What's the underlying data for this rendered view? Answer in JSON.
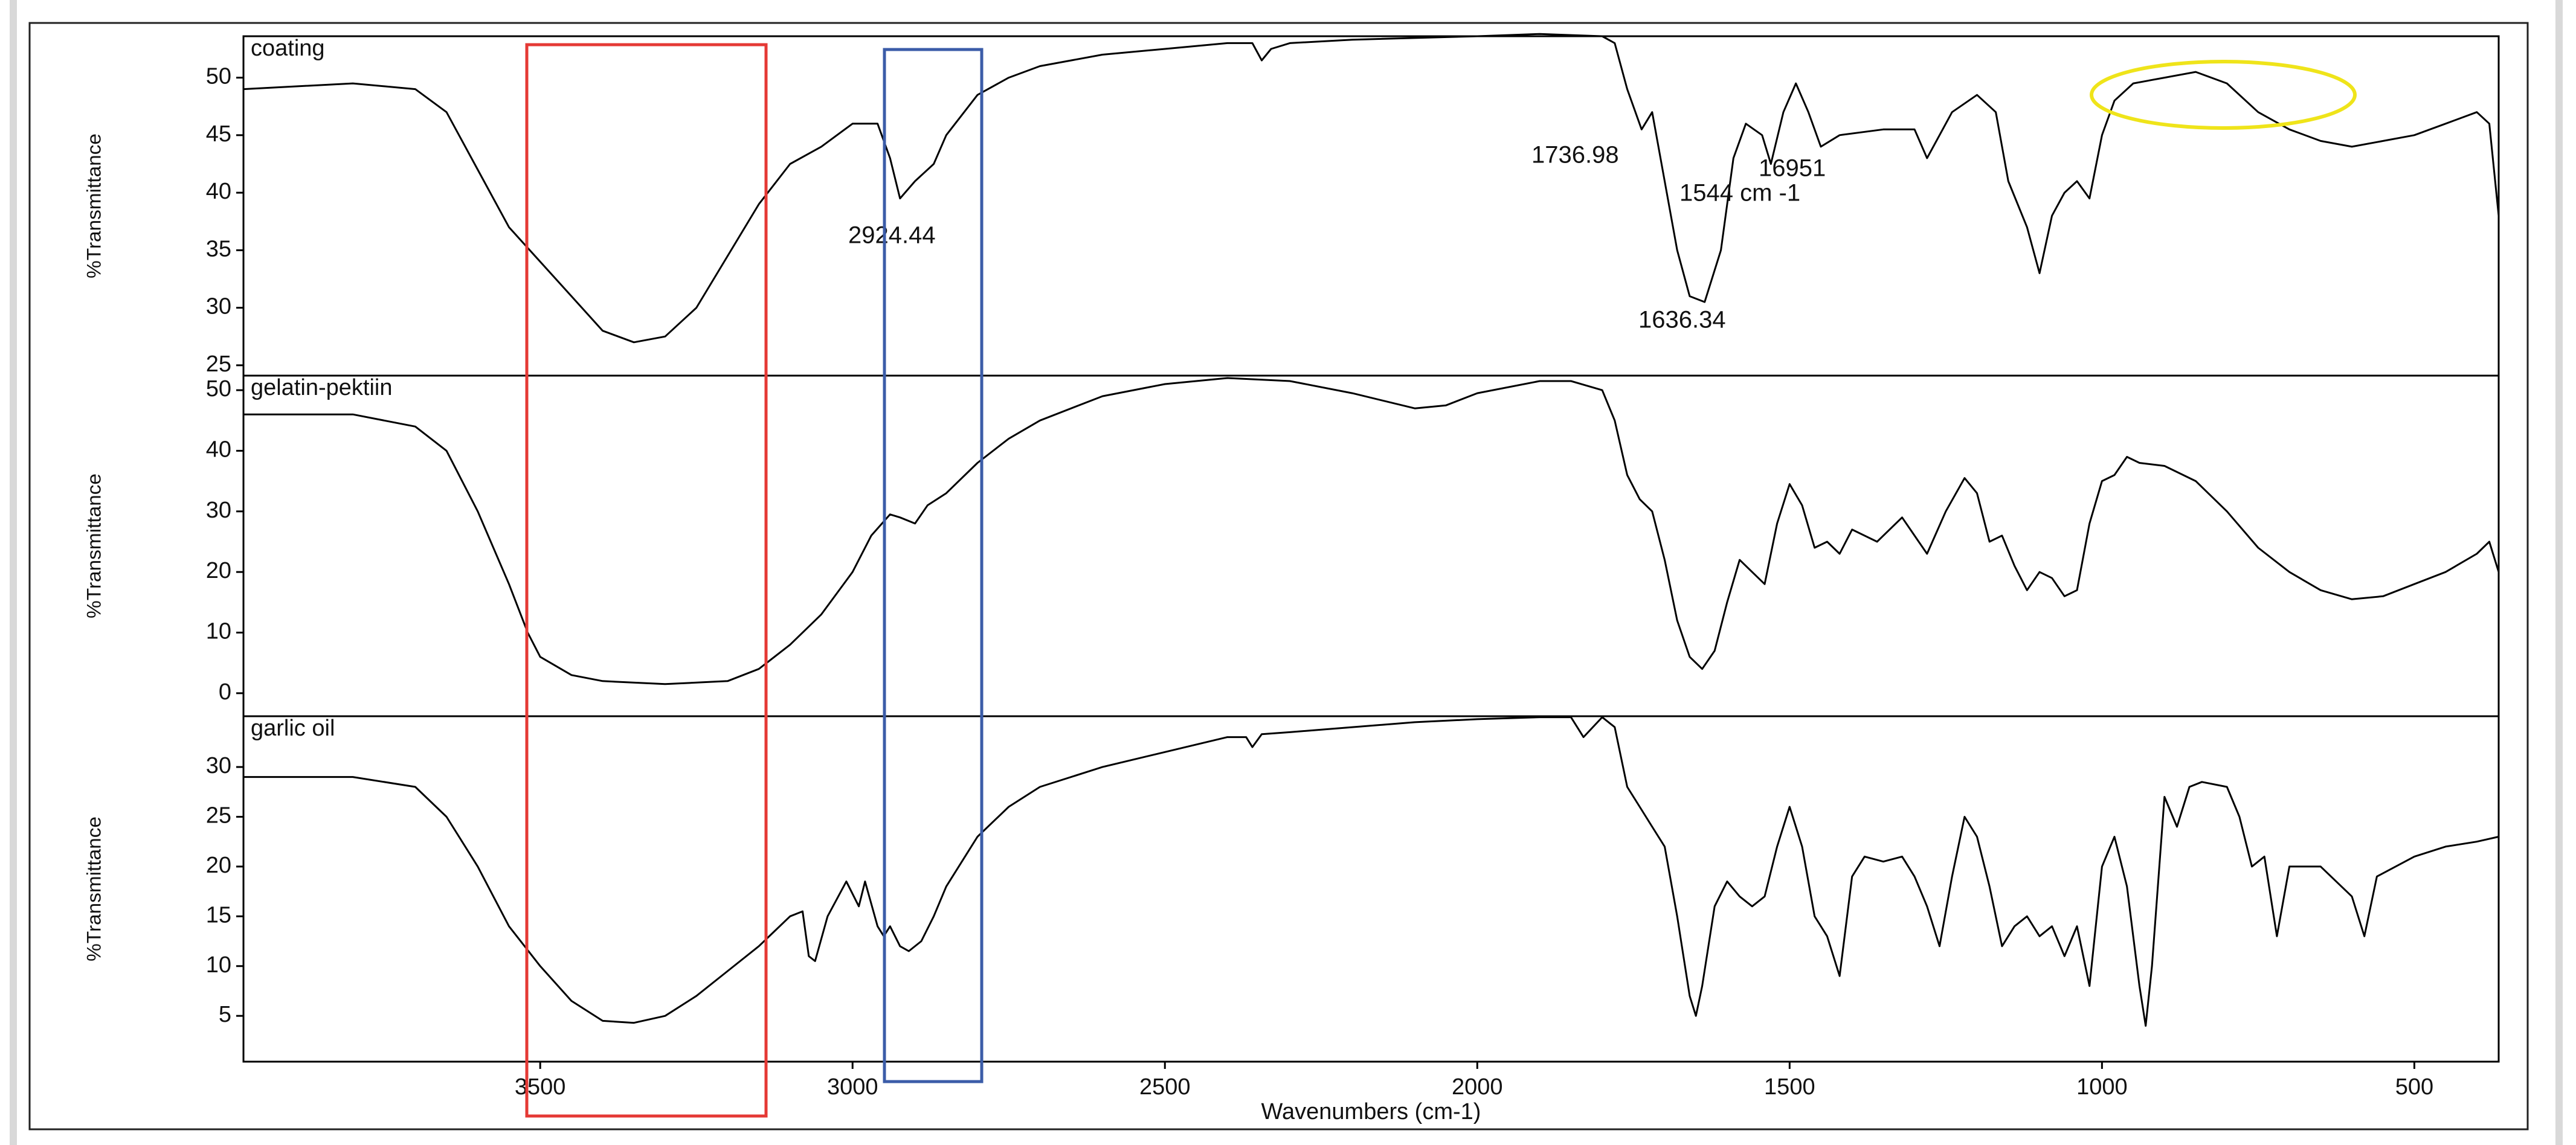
{
  "chart_data": [
    {
      "type": "line",
      "title": "coating",
      "ylabel": "%Transmittance",
      "color": "#000000",
      "xlim": [
        3975,
        365
      ],
      "ylim": [
        24.1,
        53.6
      ],
      "yticks": [
        25,
        30,
        35,
        40,
        45,
        50
      ],
      "annotations": [
        "1736.98",
        "16951",
        "1544 cm -1",
        "2924.44",
        "1636.34"
      ],
      "x": [
        3975,
        3800,
        3700,
        3650,
        3600,
        3550,
        3500,
        3450,
        3400,
        3350,
        3300,
        3250,
        3200,
        3150,
        3100,
        3050,
        3000,
        2960,
        2940,
        2924,
        2900,
        2870,
        2850,
        2800,
        2750,
        2700,
        2600,
        2500,
        2400,
        2360,
        2345,
        2330,
        2300,
        2200,
        2000,
        1900,
        1800,
        1780,
        1760,
        1737,
        1720,
        1700,
        1680,
        1660,
        1636,
        1610,
        1590,
        1570,
        1544,
        1530,
        1510,
        1490,
        1470,
        1450,
        1420,
        1350,
        1300,
        1280,
        1240,
        1200,
        1170,
        1150,
        1120,
        1100,
        1080,
        1060,
        1040,
        1020,
        1000,
        980,
        950,
        900,
        850,
        800,
        750,
        700,
        650,
        600,
        550,
        500,
        450,
        400,
        380,
        365
      ],
      "values": [
        49,
        49.5,
        49,
        47,
        42,
        37,
        34,
        31,
        28,
        27,
        27.5,
        30,
        34.5,
        39,
        42.5,
        44,
        46,
        46,
        43,
        39.5,
        41,
        42.5,
        45,
        48.5,
        50,
        51,
        52,
        52.5,
        53,
        53,
        51.5,
        52.5,
        53,
        53.3,
        53.6,
        53.8,
        53.6,
        53,
        49,
        45.5,
        47,
        41,
        35,
        31,
        30.5,
        35,
        43,
        46,
        45,
        42.5,
        47,
        49.5,
        47,
        44,
        45,
        45.5,
        45.5,
        43,
        47,
        48.5,
        47,
        41,
        37,
        33,
        38,
        40,
        41,
        39.5,
        45,
        48,
        49.5,
        50,
        50.5,
        49.5,
        47,
        45.5,
        44.5,
        44,
        44.5,
        45,
        46,
        47,
        46,
        38
      ]
    },
    {
      "type": "line",
      "title": "gelatin-pektiin",
      "ylabel": "%Transmittance",
      "color": "#000000",
      "xlim": [
        3975,
        365
      ],
      "ylim": [
        -3.8,
        52.4
      ],
      "yticks": [
        0,
        10,
        20,
        30,
        40,
        50
      ],
      "x": [
        3975,
        3800,
        3700,
        3650,
        3600,
        3550,
        3520,
        3500,
        3450,
        3400,
        3300,
        3200,
        3150,
        3100,
        3050,
        3000,
        2970,
        2940,
        2924,
        2900,
        2880,
        2850,
        2800,
        2750,
        2700,
        2600,
        2500,
        2400,
        2300,
        2200,
        2100,
        2050,
        2000,
        1900,
        1850,
        1800,
        1780,
        1760,
        1740,
        1720,
        1700,
        1680,
        1660,
        1640,
        1620,
        1600,
        1580,
        1560,
        1540,
        1520,
        1500,
        1480,
        1460,
        1440,
        1420,
        1400,
        1360,
        1320,
        1300,
        1280,
        1250,
        1220,
        1200,
        1180,
        1160,
        1140,
        1120,
        1100,
        1080,
        1060,
        1040,
        1020,
        1000,
        980,
        960,
        940,
        900,
        850,
        800,
        750,
        700,
        650,
        600,
        550,
        500,
        450,
        400,
        380,
        365
      ],
      "values": [
        46,
        46,
        44,
        40,
        30,
        18,
        10,
        6,
        3,
        2,
        1.5,
        2,
        4,
        8,
        13,
        20,
        26,
        29.5,
        29,
        28,
        31,
        33,
        38,
        42,
        45,
        49,
        51,
        52,
        51.5,
        49.5,
        47,
        47.5,
        49.5,
        51.5,
        51.5,
        50,
        45,
        36,
        32,
        30,
        22,
        12,
        6,
        4,
        7,
        15,
        22,
        20,
        18,
        28,
        34.5,
        31,
        24,
        25,
        23,
        27,
        25,
        29,
        26,
        23,
        30,
        35.5,
        33,
        25,
        26,
        21,
        17,
        20,
        19,
        16,
        17,
        28,
        35,
        36,
        39,
        38,
        37.5,
        35,
        30,
        24,
        20,
        17,
        15.5,
        16,
        18,
        20,
        23,
        25,
        20
      ]
    },
    {
      "type": "line",
      "title": "garlic oil",
      "ylabel": "%Transmittance",
      "xlabel": "Wavenumbers (cm-1)",
      "color": "#000000",
      "xlim": [
        3975,
        365
      ],
      "ylim": [
        0.4,
        35.1
      ],
      "yticks": [
        5,
        10,
        15,
        20,
        25,
        30
      ],
      "xticks": [
        3500,
        3000,
        2500,
        2000,
        1500,
        1000,
        500
      ],
      "x": [
        3975,
        3800,
        3700,
        3650,
        3600,
        3550,
        3500,
        3450,
        3400,
        3350,
        3300,
        3250,
        3200,
        3150,
        3100,
        3080,
        3070,
        3060,
        3040,
        3010,
        2990,
        2980,
        2960,
        2950,
        2940,
        2924,
        2910,
        2890,
        2870,
        2850,
        2800,
        2750,
        2700,
        2600,
        2500,
        2400,
        2370,
        2360,
        2345,
        2300,
        2200,
        2100,
        2000,
        1900,
        1850,
        1830,
        1800,
        1780,
        1760,
        1740,
        1720,
        1700,
        1680,
        1660,
        1650,
        1640,
        1620,
        1600,
        1580,
        1560,
        1540,
        1520,
        1500,
        1480,
        1460,
        1440,
        1420,
        1400,
        1380,
        1350,
        1320,
        1300,
        1280,
        1260,
        1240,
        1220,
        1200,
        1180,
        1160,
        1140,
        1120,
        1100,
        1080,
        1060,
        1040,
        1020,
        1000,
        980,
        960,
        940,
        930,
        920,
        900,
        880,
        860,
        840,
        800,
        780,
        760,
        740,
        720,
        700,
        650,
        600,
        580,
        560,
        500,
        450,
        400,
        365
      ],
      "values": [
        29,
        29,
        28,
        25,
        20,
        14,
        10,
        6.5,
        4.5,
        4.3,
        5,
        7,
        9.5,
        12,
        15,
        15.5,
        11,
        10.5,
        15,
        18.5,
        16,
        18.5,
        14,
        13,
        14,
        12,
        11.5,
        12.5,
        15,
        18,
        23,
        26,
        28,
        30,
        31.5,
        33,
        33,
        32,
        33.3,
        33.5,
        34,
        34.5,
        34.8,
        35,
        35,
        33,
        35,
        34,
        28,
        26,
        24,
        22,
        15,
        7,
        5,
        8,
        16,
        18.5,
        17,
        16,
        17,
        22,
        26,
        22,
        15,
        13,
        9,
        19,
        21,
        20.5,
        21,
        19,
        16,
        12,
        19,
        25,
        23,
        18,
        12,
        14,
        15,
        13,
        14,
        11,
        14,
        8,
        20,
        23,
        18,
        8,
        4,
        10,
        27,
        24,
        28,
        28.5,
        28,
        25,
        20,
        21,
        13,
        20,
        20,
        17,
        13,
        19,
        21,
        22,
        22.5,
        23
      ]
    }
  ]
}
